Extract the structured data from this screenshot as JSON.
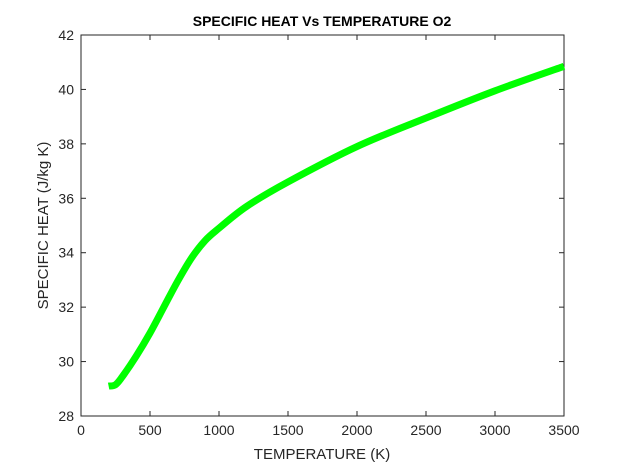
{
  "chart_data": {
    "type": "line",
    "title": "SPECIFIC HEAT Vs TEMPERATURE O2",
    "xlabel": "TEMPERATURE (K)",
    "ylabel": "SPECIFIC HEAT (J/kg K)",
    "xlim": [
      0,
      3500
    ],
    "ylim": [
      28,
      42
    ],
    "xticks": [
      0,
      500,
      1000,
      1500,
      2000,
      2500,
      3000,
      3500
    ],
    "yticks": [
      28,
      30,
      32,
      34,
      36,
      38,
      40,
      42
    ],
    "grid": false,
    "line_color": "#00ff00",
    "series": [
      {
        "name": "O2",
        "x": [
          200,
          250,
          300,
          400,
          500,
          600,
          700,
          800,
          900,
          1000,
          1200,
          1500,
          2000,
          2500,
          3000,
          3500
        ],
        "y": [
          29.1,
          29.15,
          29.45,
          30.2,
          31.05,
          32.0,
          32.95,
          33.8,
          34.45,
          34.9,
          35.7,
          36.6,
          37.9,
          38.95,
          39.95,
          40.85
        ]
      }
    ]
  }
}
